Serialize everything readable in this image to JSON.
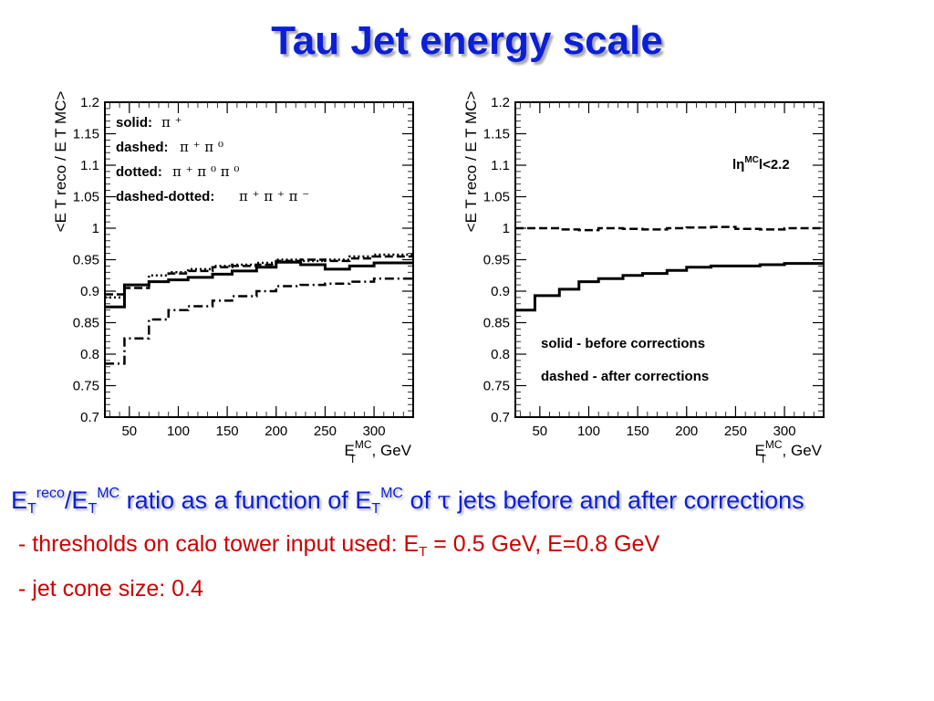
{
  "slide": {
    "title": "Tau Jet energy scale"
  },
  "caption": {
    "line1_e1": "E",
    "line1_sub1": "T",
    "line1_sup1": "reco",
    "line1_slash": "/E",
    "line1_sub2": "T",
    "line1_sup2": "MC",
    "line1_mid": " ratio as a function of E",
    "line1_sub3": "T",
    "line1_sup3": "MC",
    "line1_of": " of ",
    "line1_tau": "τ",
    "line1_end": " jets before and after corrections",
    "bullet1_pre": "- thresholds on calo tower input used: E",
    "bullet1_sub": "T",
    "bullet1_post": " = 0.5 GeV, E=0.8 GeV",
    "bullet2": "- jet cone size: 0.4"
  },
  "colors": {
    "title": "#0b1fd6",
    "caption": "#0b1fd6",
    "bullets": "#cc0000",
    "lines": "#000000"
  },
  "chart_data": [
    {
      "type": "line",
      "step": true,
      "xlim": [
        25,
        340
      ],
      "ylim": [
        0.7,
        1.2
      ],
      "xticks": [
        50,
        100,
        150,
        200,
        250,
        300
      ],
      "yticks": [
        0.7,
        0.75,
        0.8,
        0.85,
        0.9,
        0.95,
        1,
        1.05,
        1.1,
        1.15,
        1.2
      ],
      "ytick_labels": [
        "0.7",
        "0.75",
        "0.8",
        "0.85",
        "0.9",
        "0.95",
        "1",
        "1.05",
        "1.1",
        "1.15",
        "1.2"
      ],
      "xlabel": {
        "main": "E",
        "sup": "MC",
        "sub": "T",
        "unit": ", GeV"
      },
      "ylabel": "<E T reco / E T MC>",
      "legend": [
        {
          "style": "solid",
          "label": "solid:",
          "decay": "π ⁺"
        },
        {
          "style": "dashed",
          "label": "dashed:",
          "decay": "π ⁺ π ⁰"
        },
        {
          "style": "dotted",
          "label": "dotted:",
          "decay": "π ⁺ π ⁰ π ⁰"
        },
        {
          "style": "dashdot",
          "label": "dashed-dotted:",
          "decay": "π ⁺ π ⁺ π ⁻"
        }
      ],
      "legend_position": "top-left",
      "series": [
        {
          "style": "solid",
          "x": [
            25,
            45,
            70,
            90,
            110,
            135,
            155,
            180,
            200,
            225,
            250,
            275,
            300,
            340
          ],
          "y": [
            0.875,
            0.91,
            0.915,
            0.918,
            0.922,
            0.927,
            0.932,
            0.938,
            0.946,
            0.942,
            0.935,
            0.94,
            0.945,
            0.945
          ]
        },
        {
          "style": "dashed",
          "x": [
            25,
            45,
            70,
            90,
            110,
            135,
            155,
            180,
            200,
            225,
            250,
            275,
            300,
            340
          ],
          "y": [
            0.895,
            0.905,
            0.915,
            0.928,
            0.932,
            0.938,
            0.94,
            0.942,
            0.948,
            0.95,
            0.948,
            0.952,
            0.955,
            0.955
          ]
        },
        {
          "style": "dotted",
          "x": [
            25,
            45,
            70,
            90,
            110,
            135,
            155,
            180,
            200,
            225,
            250,
            275,
            300,
            340
          ],
          "y": [
            0.89,
            0.91,
            0.925,
            0.93,
            0.935,
            0.94,
            0.942,
            0.945,
            0.95,
            0.948,
            0.95,
            0.955,
            0.958,
            0.958
          ]
        },
        {
          "style": "dashdot",
          "x": [
            25,
            45,
            70,
            90,
            110,
            135,
            155,
            180,
            200,
            225,
            250,
            275,
            300,
            340
          ],
          "y": [
            0.785,
            0.825,
            0.855,
            0.87,
            0.876,
            0.885,
            0.892,
            0.9,
            0.908,
            0.91,
            0.912,
            0.915,
            0.92,
            0.925
          ]
        }
      ]
    },
    {
      "type": "line",
      "step": true,
      "xlim": [
        25,
        340
      ],
      "ylim": [
        0.7,
        1.2
      ],
      "xticks": [
        50,
        100,
        150,
        200,
        250,
        300
      ],
      "yticks": [
        0.7,
        0.75,
        0.8,
        0.85,
        0.9,
        0.95,
        1,
        1.05,
        1.1,
        1.15,
        1.2
      ],
      "ytick_labels": [
        "0.7",
        "0.75",
        "0.8",
        "0.85",
        "0.9",
        "0.95",
        "1",
        "1.05",
        "1.1",
        "1.15",
        "1.2"
      ],
      "xlabel": {
        "main": "E",
        "sup": "MC",
        "sub": "T",
        "unit": ", GeV"
      },
      "ylabel": "<E T reco / E T MC>",
      "annotation": {
        "pre": "lη",
        "sup": "MC",
        "post": "l<2.2"
      },
      "legend": [
        {
          "style": "solid",
          "label": "solid - before corrections"
        },
        {
          "style": "dashed",
          "label": "dashed - after corrections"
        }
      ],
      "legend_position": "bottom-center",
      "series": [
        {
          "style": "solid",
          "x": [
            25,
            45,
            70,
            90,
            110,
            135,
            155,
            180,
            200,
            225,
            250,
            275,
            300,
            340
          ],
          "y": [
            0.87,
            0.893,
            0.903,
            0.915,
            0.92,
            0.925,
            0.928,
            0.933,
            0.938,
            0.94,
            0.94,
            0.942,
            0.944,
            0.946
          ]
        },
        {
          "style": "dashed",
          "x": [
            25,
            45,
            70,
            90,
            110,
            135,
            155,
            180,
            200,
            225,
            250,
            275,
            300,
            340
          ],
          "y": [
            1.0,
            1.0,
            0.998,
            0.997,
            1.0,
            0.999,
            0.998,
            1.0,
            1.001,
            1.002,
            0.999,
            0.998,
            1.0,
            0.999
          ]
        }
      ]
    }
  ]
}
